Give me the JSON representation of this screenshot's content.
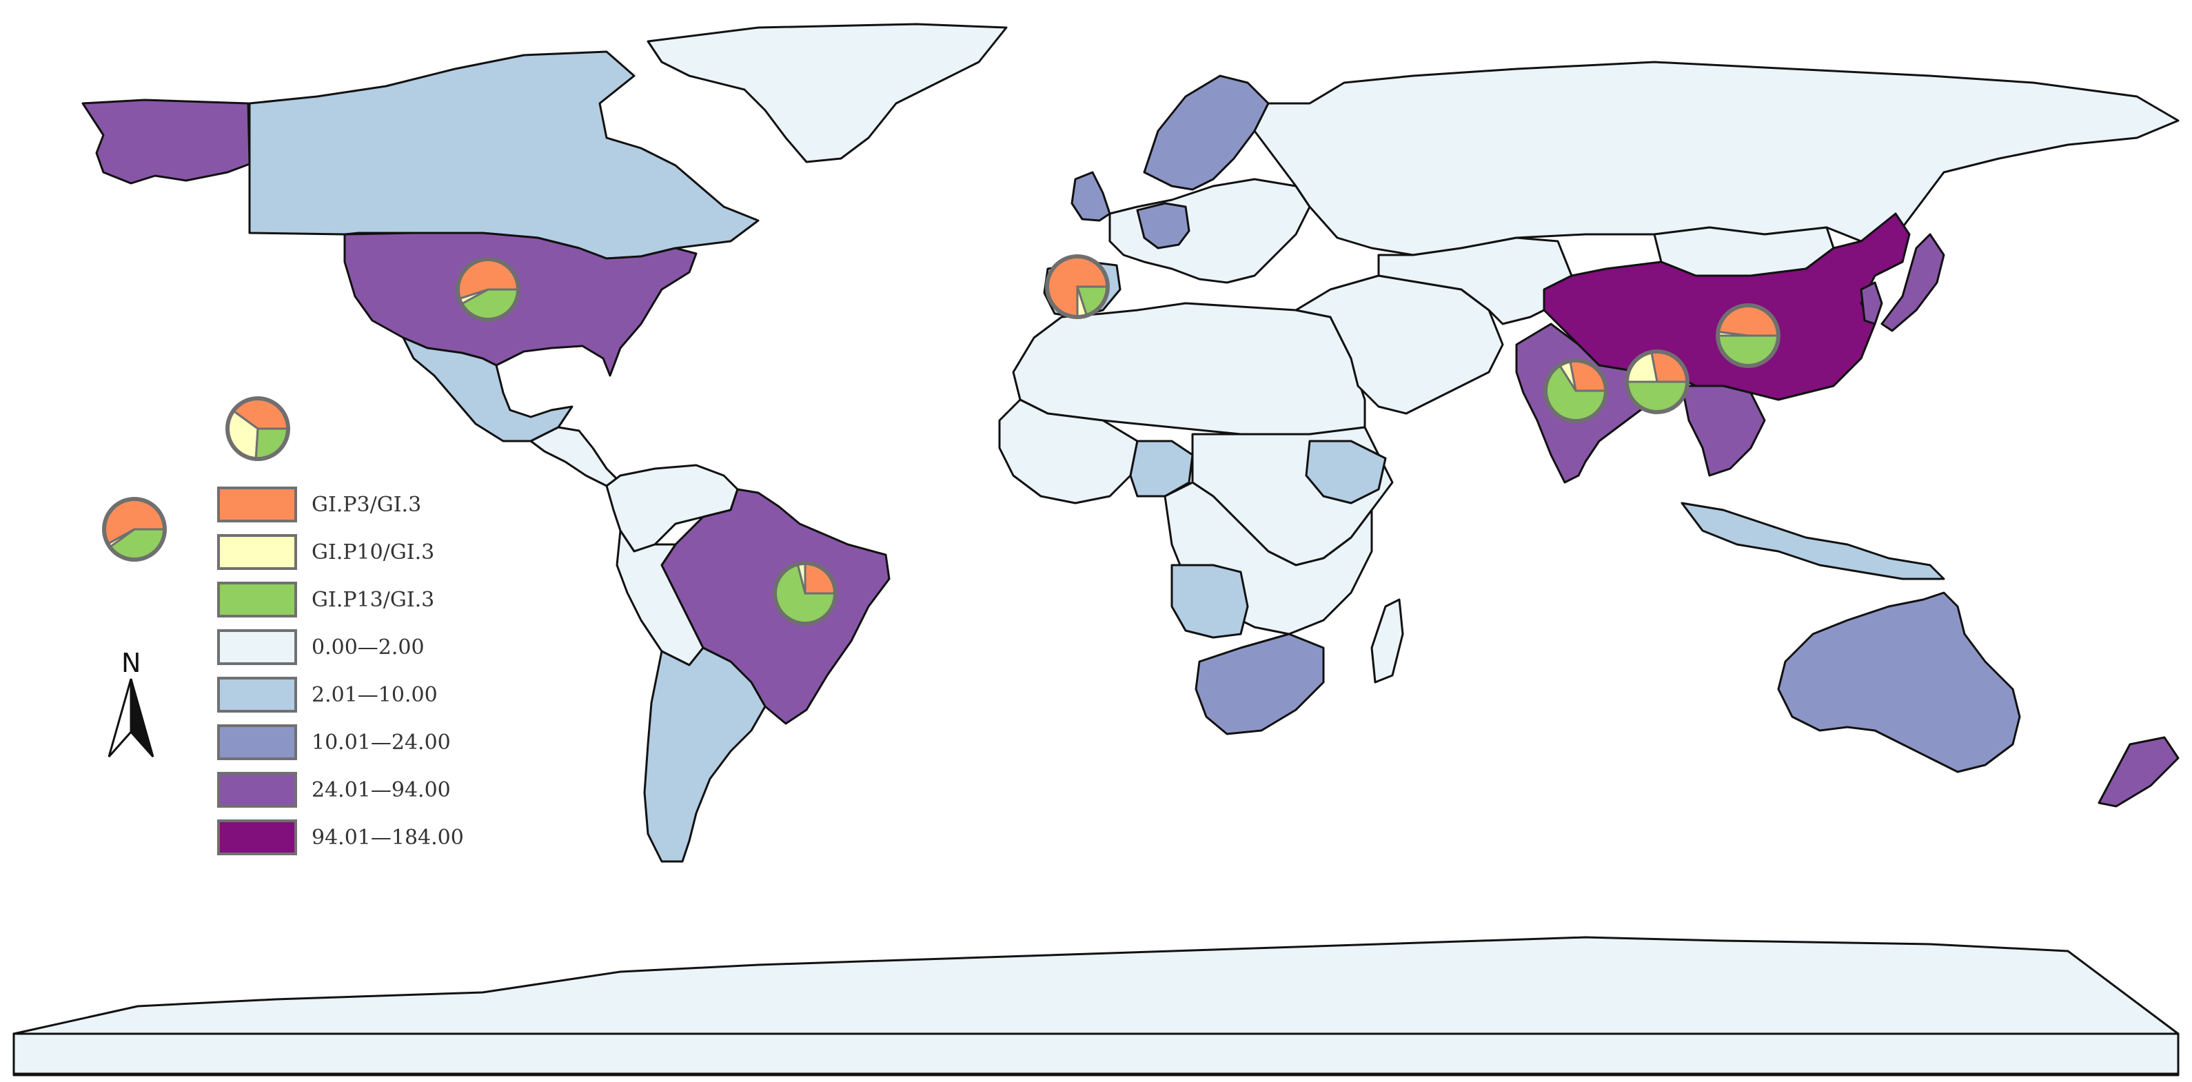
{
  "colors": {
    "c0": "#eaf4f9",
    "c1": "#b3cde3",
    "c2": "#8c96c6",
    "c3": "#8856a7",
    "c4": "#810f7c",
    "p3": "#fc8d59",
    "p10": "#ffffbf",
    "p13": "#91cf60"
  },
  "legend": {
    "items": [
      {
        "id": "p3",
        "label": "GI.P3/GI.3"
      },
      {
        "id": "p10",
        "label": "GI.P10/GI.3"
      },
      {
        "id": "p13",
        "label": "GI.P13/GI.3"
      },
      {
        "id": "c0",
        "label": "0.00—2.00"
      },
      {
        "id": "c1",
        "label": "2.01—10.00"
      },
      {
        "id": "c2",
        "label": "10.01—24.00"
      },
      {
        "id": "c3",
        "label": "24.01—94.00"
      },
      {
        "id": "c4",
        "label": "94.01—184.00"
      }
    ]
  },
  "north_arrow": {
    "label": "N"
  },
  "regions": [
    {
      "name": "alaska",
      "cls": "c3"
    },
    {
      "name": "canada",
      "cls": "c1"
    },
    {
      "name": "usa",
      "cls": "c3"
    },
    {
      "name": "mexico",
      "cls": "c1"
    },
    {
      "name": "central-america",
      "cls": "c0"
    },
    {
      "name": "greenland",
      "cls": "c0"
    },
    {
      "name": "colombia-venezuela",
      "cls": "c0"
    },
    {
      "name": "brazil",
      "cls": "c3"
    },
    {
      "name": "peru-bolivia",
      "cls": "c0"
    },
    {
      "name": "argentina-chile",
      "cls": "c1"
    },
    {
      "name": "uk",
      "cls": "c2"
    },
    {
      "name": "scandinavia",
      "cls": "c2"
    },
    {
      "name": "europe-west",
      "cls": "c0"
    },
    {
      "name": "germany",
      "cls": "c2"
    },
    {
      "name": "iberia",
      "cls": "c1"
    },
    {
      "name": "russia",
      "cls": "c0"
    },
    {
      "name": "north-africa",
      "cls": "c0"
    },
    {
      "name": "west-africa",
      "cls": "c0"
    },
    {
      "name": "nigeria",
      "cls": "c1"
    },
    {
      "name": "east-africa",
      "cls": "c0"
    },
    {
      "name": "ethiopia",
      "cls": "c1"
    },
    {
      "name": "central-africa",
      "cls": "c0"
    },
    {
      "name": "angola-zambia",
      "cls": "c1"
    },
    {
      "name": "south-africa",
      "cls": "c2"
    },
    {
      "name": "madagascar",
      "cls": "c0"
    },
    {
      "name": "middle-east",
      "cls": "c0"
    },
    {
      "name": "central-asia",
      "cls": "c0"
    },
    {
      "name": "india",
      "cls": "c3"
    },
    {
      "name": "china",
      "cls": "c4"
    },
    {
      "name": "mongolia",
      "cls": "c0"
    },
    {
      "name": "southeast-asia",
      "cls": "c3"
    },
    {
      "name": "korea",
      "cls": "c3"
    },
    {
      "name": "japan",
      "cls": "c3"
    },
    {
      "name": "indonesia",
      "cls": "c1"
    },
    {
      "name": "australia",
      "cls": "c2"
    },
    {
      "name": "new-zealand",
      "cls": "c3"
    },
    {
      "name": "antarctica",
      "cls": "c0"
    }
  ],
  "pies": [
    {
      "name": "pie-usa",
      "p3": 0.55,
      "p10": 0.03,
      "p13": 0.42
    },
    {
      "name": "pie-legend-1",
      "p3": 0.4,
      "p10": 0.34,
      "p13": 0.26
    },
    {
      "name": "pie-legend-2",
      "p3": 0.58,
      "p10": 0.02,
      "p13": 0.4
    },
    {
      "name": "pie-brazil",
      "p3": 0.25,
      "p10": 0.04,
      "p13": 0.71
    },
    {
      "name": "pie-spain",
      "p3": 0.75,
      "p10": 0.05,
      "p13": 0.2
    },
    {
      "name": "pie-china",
      "p3": 0.48,
      "p10": 0.02,
      "p13": 0.5
    },
    {
      "name": "pie-india",
      "p3": 0.28,
      "p10": 0.06,
      "p13": 0.66
    },
    {
      "name": "pie-bangladesh",
      "p3": 0.28,
      "p10": 0.22,
      "p13": 0.5
    }
  ]
}
